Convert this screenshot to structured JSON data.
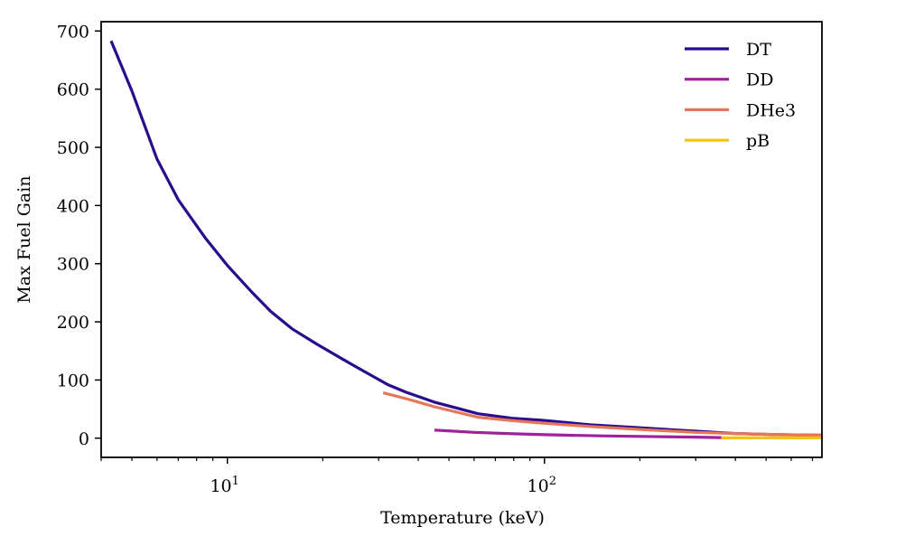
{
  "chart_data": {
    "type": "line",
    "title": "",
    "xlabel": "Temperature (keV)",
    "ylabel": "Max Fuel Gain",
    "xscale": "log",
    "xlim": [
      4.0,
      750
    ],
    "ylim": [
      -33,
      716
    ],
    "grid": false,
    "legend_position": "top-right",
    "yticks": [
      0,
      100,
      200,
      300,
      400,
      500,
      600,
      700
    ],
    "ytick_labels": [
      "0",
      "100",
      "200",
      "300",
      "400",
      "500",
      "600",
      "700"
    ],
    "xticks_major": [
      10,
      100
    ],
    "xtick_labels": [
      {
        "base": "10",
        "exp": "1"
      },
      {
        "base": "10",
        "exp": "2"
      }
    ],
    "xticks_minor": [
      4,
      5,
      6,
      7,
      8,
      9,
      20,
      30,
      40,
      50,
      60,
      70,
      80,
      90,
      200,
      300,
      400,
      500,
      600,
      700
    ],
    "series": [
      {
        "name": "DT",
        "color": "#2a0d8c",
        "x": [
          4.3,
          5,
          6,
          7,
          8.5,
          10,
          12,
          13.7,
          16,
          19.1,
          25,
          32.1,
          36.6,
          45,
          61.7,
          80,
          97.8,
          140,
          200,
          300,
          400,
          550,
          750
        ],
        "y": [
          683,
          597,
          480,
          410,
          345,
          297,
          250,
          218,
          188,
          162,
          125,
          92,
          79,
          62,
          42,
          34,
          31,
          23,
          18,
          12,
          8,
          6,
          5
        ]
      },
      {
        "name": "DD",
        "color": "#a0219b",
        "x": [
          45,
          60,
          80,
          100,
          150,
          200,
          280,
          361
        ],
        "y": [
          14,
          10,
          7.5,
          6,
          4,
          3,
          2,
          1
        ]
      },
      {
        "name": "DHe3",
        "color": "#e6765a",
        "x": [
          31,
          36.6,
          45,
          61.7,
          80,
          97.8,
          140,
          200,
          300,
          400,
          550,
          750
        ],
        "y": [
          78,
          68,
          54,
          36,
          30,
          26,
          20,
          15,
          10,
          8,
          6,
          5
        ]
      },
      {
        "name": "pB",
        "color": "#f5c21a",
        "x": [
          361,
          500,
          750
        ],
        "y": [
          0.5,
          0.5,
          0.5
        ]
      }
    ]
  }
}
